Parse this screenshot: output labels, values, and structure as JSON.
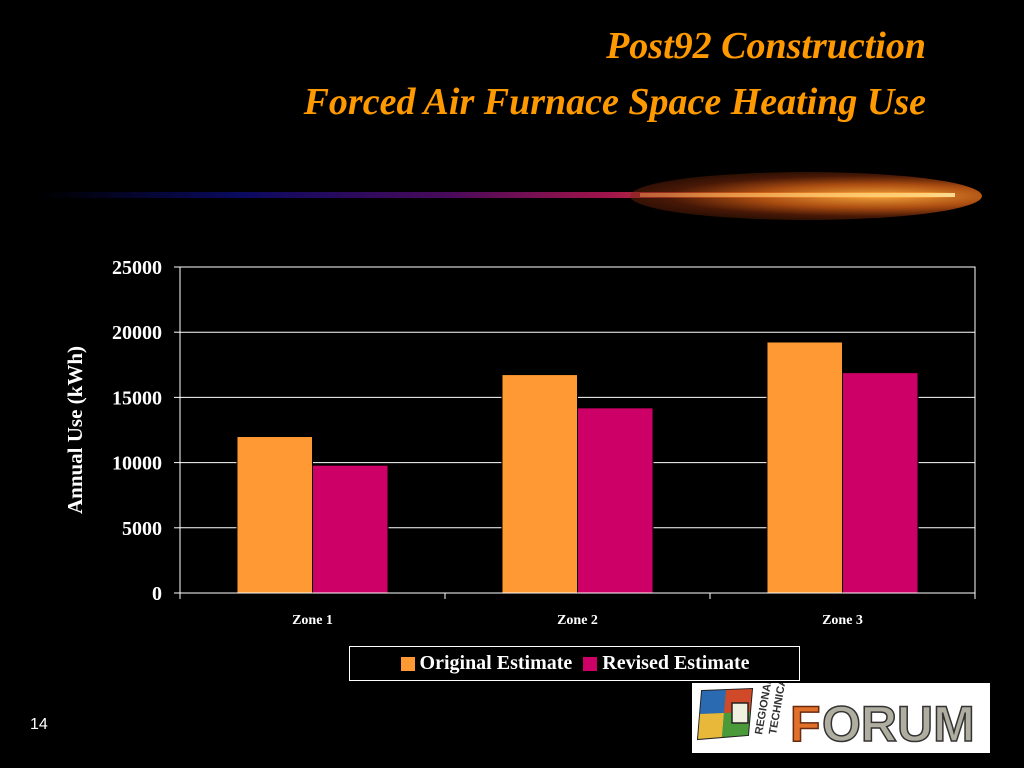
{
  "slide": {
    "title_line1": "Post92 Construction",
    "title_line2": "Forced Air Furnace Space Heating Use",
    "page_number": "14",
    "logo_text": "REGIONAL TECHNICAL FORUM"
  },
  "colors": {
    "background": "#000000",
    "title": "#FF9900",
    "series_original": "#FF9933",
    "series_revised": "#CC0066",
    "axis": "#FFFFFF"
  },
  "chart_data": {
    "type": "bar",
    "categories": [
      "Zone 1",
      "Zone 2",
      "Zone 3"
    ],
    "series": [
      {
        "name": "Original Estimate",
        "values": [
          12000,
          16750,
          19250
        ]
      },
      {
        "name": "Revised Estimate",
        "values": [
          9800,
          14200,
          16900
        ]
      }
    ],
    "title": "",
    "xlabel": "",
    "ylabel": "Annual Use (kWh)",
    "ylim": [
      0,
      25000
    ],
    "yticks": [
      0,
      5000,
      10000,
      15000,
      20000,
      25000
    ],
    "grid": true,
    "legend": "bottom"
  }
}
